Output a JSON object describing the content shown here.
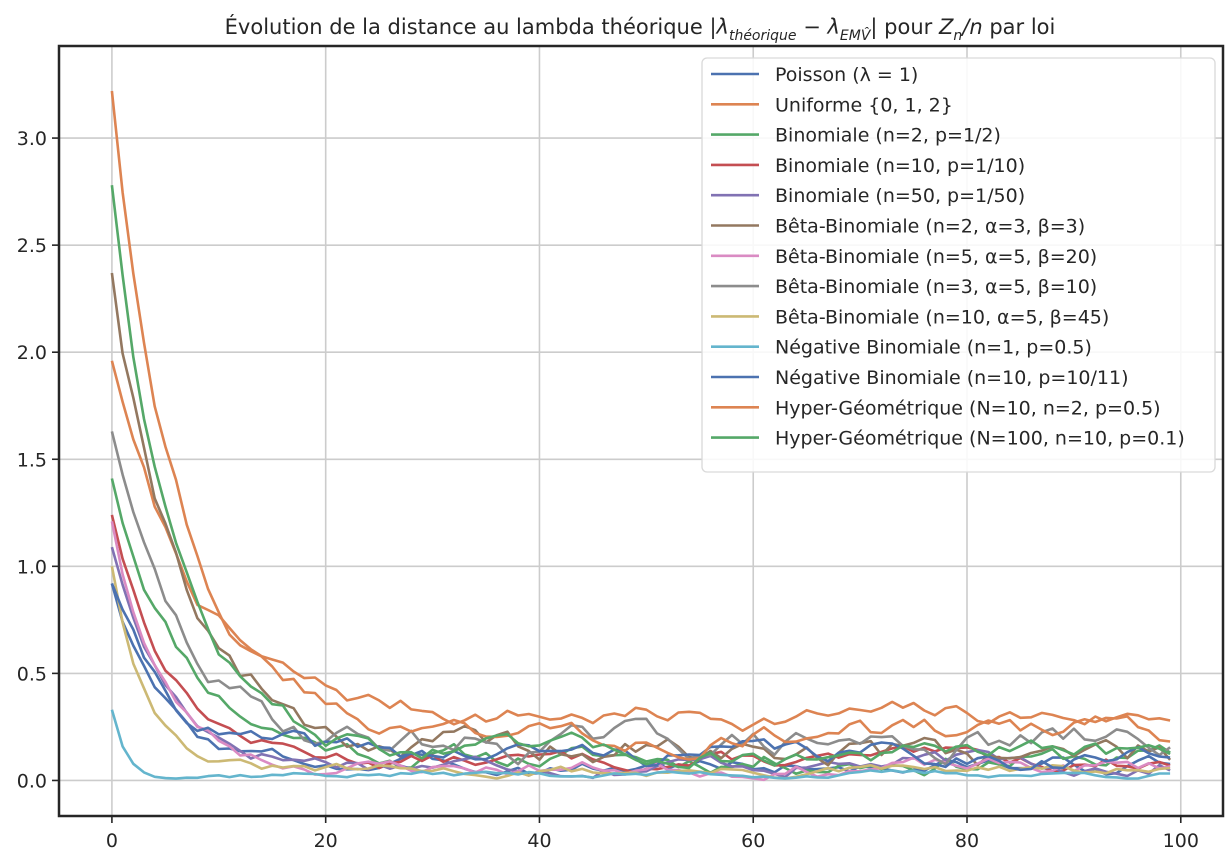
{
  "chart_data": {
    "type": "line",
    "title": {
      "prefix": "Évolution de la distance au lambda théorique |",
      "lambda": "λ",
      "sub_theorique": "théorique",
      "minus": " − ",
      "sub_emv": "EMV̂",
      "mid": "| pour ",
      "z": "Z",
      "sub_n": "n",
      "slash_n": "/n",
      "suffix": " par loi"
    },
    "xlabel": "",
    "ylabel": "",
    "xlim": [
      -4.95,
      103.95
    ],
    "ylim": [
      -0.166,
      3.43
    ],
    "xticks": [
      0,
      20,
      40,
      60,
      80,
      100
    ],
    "yticks": [
      0.0,
      0.5,
      1.0,
      1.5,
      2.0,
      2.5,
      3.0
    ],
    "xtick_labels": [
      "0",
      "20",
      "40",
      "60",
      "80",
      "100"
    ],
    "ytick_labels": [
      "0.0",
      "0.5",
      "1.0",
      "1.5",
      "2.0",
      "2.5",
      "3.0"
    ],
    "grid": true,
    "legend_position": "top-right",
    "x_range": [
      0,
      99
    ],
    "series": [
      {
        "name": "Poisson (λ = 1)",
        "color": "#4c72b0",
        "start": 0.92,
        "decay": 4.5,
        "floor": 0.07,
        "amp": 0.055,
        "seed": 3
      },
      {
        "name": "Uniforme {0, 1, 2}",
        "color": "#dd8452",
        "start": 1.96,
        "decay": 7.5,
        "floor": 0.3,
        "amp": 0.07,
        "seed": 7
      },
      {
        "name": "Binomiale (n=2, p=1/2)",
        "color": "#55a868",
        "start": 1.41,
        "decay": 7.0,
        "floor": 0.1,
        "amp": 0.07,
        "seed": 11
      },
      {
        "name": "Binomiale (n=10, p=1/10)",
        "color": "#c44e52",
        "start": 1.24,
        "decay": 5.5,
        "floor": 0.09,
        "amp": 0.05,
        "seed": 13
      },
      {
        "name": "Binomiale (n=50, p=1/50)",
        "color": "#8172b3",
        "start": 1.09,
        "decay": 5.0,
        "floor": 0.08,
        "amp": 0.055,
        "seed": 17
      },
      {
        "name": "Bêta-Binomiale (n=2, α=3, β=3)",
        "color": "#937860",
        "start": 2.37,
        "decay": 7.0,
        "floor": 0.13,
        "amp": 0.1,
        "seed": 19
      },
      {
        "name": "Bêta-Binomiale (n=5, α=5, β=20)",
        "color": "#da8bc3",
        "start": 1.21,
        "decay": 4.5,
        "floor": 0.06,
        "amp": 0.05,
        "seed": 23
      },
      {
        "name": "Bêta-Binomiale (n=3, α=5, β=10)",
        "color": "#8c8c8c",
        "start": 1.63,
        "decay": 6.0,
        "floor": 0.17,
        "amp": 0.1,
        "seed": 29
      },
      {
        "name": "Bêta-Binomiale (n=10, α=5, β=45)",
        "color": "#ccb974",
        "start": 1.0,
        "decay": 3.5,
        "floor": 0.04,
        "amp": 0.035,
        "seed": 31
      },
      {
        "name": "Négative Binomiale (n=1, p=0.5)",
        "color": "#64b5cd",
        "start": 0.33,
        "decay": 1.2,
        "floor": 0.03,
        "amp": 0.02,
        "seed": 37
      },
      {
        "name": "Négative Binomiale (n=10, p=10/11)",
        "color": "#4c72b0",
        "start": 0.92,
        "decay": 5.0,
        "floor": 0.12,
        "amp": 0.07,
        "seed": 41
      },
      {
        "name": "Hyper-Géométrique (N=10, n=2, p=0.5)",
        "color": "#dd8452",
        "start": 3.22,
        "decay": 6.5,
        "floor": 0.22,
        "amp": 0.08,
        "seed": 43
      },
      {
        "name": "Hyper-Géométrique (N=100, n=10, p=0.1)",
        "color": "#55a868",
        "start": 2.78,
        "decay": 6.0,
        "floor": 0.12,
        "amp": 0.07,
        "seed": 47
      }
    ]
  }
}
